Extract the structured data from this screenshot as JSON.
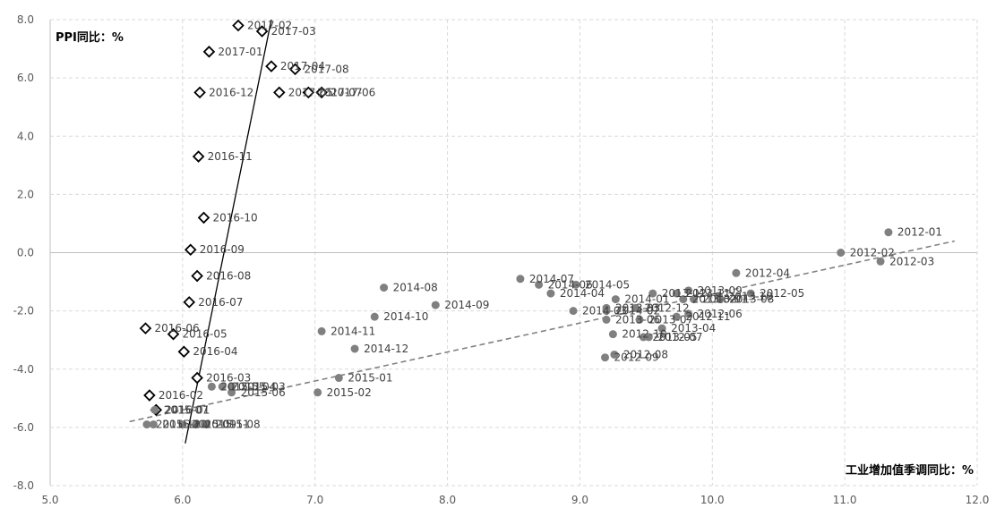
{
  "chart_data": {
    "type": "scatter",
    "ylabel": "PPI同比：%",
    "xlabel": "工业增加值季调同比：%",
    "xlim": [
      5.0,
      12.0
    ],
    "ylim": [
      -8.0,
      8.0
    ],
    "xticks": [
      "5.0",
      "6.0",
      "7.0",
      "8.0",
      "9.0",
      "10.0",
      "11.0",
      "12.0"
    ],
    "yticks": [
      "8.0",
      "6.0",
      "4.0",
      "2.0",
      "0.0",
      "-2.0",
      "-4.0",
      "-6.0",
      "-8.0"
    ],
    "grid": true,
    "series": [
      {
        "marker": "diamond-open",
        "color": "#000000",
        "points": [
          {
            "label": "2016-01",
            "x": 5.8,
            "y": -5.4
          },
          {
            "label": "2016-02",
            "x": 5.75,
            "y": -4.9
          },
          {
            "label": "2016-03",
            "x": 6.11,
            "y": -4.3
          },
          {
            "label": "2016-04",
            "x": 6.01,
            "y": -3.4
          },
          {
            "label": "2016-05",
            "x": 5.93,
            "y": -2.8
          },
          {
            "label": "2016-06",
            "x": 5.72,
            "y": -2.6
          },
          {
            "label": "2016-07",
            "x": 6.05,
            "y": -1.7
          },
          {
            "label": "2016-08",
            "x": 6.11,
            "y": -0.8
          },
          {
            "label": "2016-09",
            "x": 6.06,
            "y": 0.1
          },
          {
            "label": "2016-10",
            "x": 6.16,
            "y": 1.2
          },
          {
            "label": "2016-11",
            "x": 6.12,
            "y": 3.3
          },
          {
            "label": "2016-12",
            "x": 6.13,
            "y": 5.5
          },
          {
            "label": "2017-01",
            "x": 6.2,
            "y": 6.9
          },
          {
            "label": "2017-02",
            "x": 6.42,
            "y": 7.8
          },
          {
            "label": "2017-03",
            "x": 6.6,
            "y": 7.6
          },
          {
            "label": "2017-04",
            "x": 6.67,
            "y": 6.4
          },
          {
            "label": "2017-05",
            "x": 6.73,
            "y": 5.5
          },
          {
            "label": "2017-06",
            "x": 7.05,
            "y": 5.5
          },
          {
            "label": "2017-07",
            "x": 6.95,
            "y": 5.5
          },
          {
            "label": "2017-08",
            "x": 6.85,
            "y": 6.3
          }
        ]
      },
      {
        "marker": "circle-filled",
        "color": "#808080",
        "points": [
          {
            "label": "2012-01",
            "x": 11.33,
            "y": 0.7
          },
          {
            "label": "2012-02",
            "x": 10.97,
            "y": 0.0
          },
          {
            "label": "2012-03",
            "x": 11.27,
            "y": -0.3
          },
          {
            "label": "2012-04",
            "x": 10.18,
            "y": -0.7
          },
          {
            "label": "2012-05",
            "x": 10.29,
            "y": -1.4
          },
          {
            "label": "2012-06",
            "x": 9.82,
            "y": -2.1
          },
          {
            "label": "2012-07",
            "x": 9.52,
            "y": -2.9
          },
          {
            "label": "2012-08",
            "x": 9.26,
            "y": -3.5
          },
          {
            "label": "2012-09",
            "x": 9.19,
            "y": -3.6
          },
          {
            "label": "2012-10",
            "x": 9.25,
            "y": -2.8
          },
          {
            "label": "2012-11",
            "x": 9.73,
            "y": -2.2
          },
          {
            "label": "2012-12",
            "x": 9.42,
            "y": -1.9
          },
          {
            "label": "2013-01",
            "x": 9.86,
            "y": -1.6
          },
          {
            "label": "2013-02",
            "x": 9.78,
            "y": -1.6
          },
          {
            "label": "2013-03",
            "x": 9.2,
            "y": -1.9
          },
          {
            "label": "2013-04",
            "x": 9.62,
            "y": -2.6
          },
          {
            "label": "2013-05",
            "x": 9.48,
            "y": -2.9
          },
          {
            "label": "2013-06",
            "x": 9.2,
            "y": -2.3
          },
          {
            "label": "2013-07",
            "x": 9.45,
            "y": -2.3
          },
          {
            "label": "2013-08",
            "x": 10.06,
            "y": -1.6
          },
          {
            "label": "2013-09",
            "x": 9.82,
            "y": -1.3
          },
          {
            "label": "2013-10",
            "x": 10.05,
            "y": -1.5
          },
          {
            "label": "2013-11",
            "x": 9.73,
            "y": -1.4
          },
          {
            "label": "2013-12",
            "x": 9.55,
            "y": -1.4
          },
          {
            "label": "2014-01",
            "x": 9.27,
            "y": -1.6
          },
          {
            "label": "2014-02",
            "x": 9.2,
            "y": -2.0
          },
          {
            "label": "2014-03",
            "x": 8.95,
            "y": -2.0
          },
          {
            "label": "2014-04",
            "x": 8.78,
            "y": -1.4
          },
          {
            "label": "2014-05",
            "x": 8.97,
            "y": -1.1
          },
          {
            "label": "2014-06",
            "x": 8.69,
            "y": -1.1
          },
          {
            "label": "2014-07",
            "x": 8.55,
            "y": -0.9
          },
          {
            "label": "2014-08",
            "x": 7.52,
            "y": -1.2
          },
          {
            "label": "2014-09",
            "x": 7.91,
            "y": -1.8
          },
          {
            "label": "2014-10",
            "x": 7.45,
            "y": -2.2
          },
          {
            "label": "2014-11",
            "x": 7.05,
            "y": -2.7
          },
          {
            "label": "2014-12",
            "x": 7.3,
            "y": -3.3
          },
          {
            "label": "2015-01",
            "x": 7.18,
            "y": -4.3
          },
          {
            "label": "2015-02",
            "x": 7.02,
            "y": -4.8
          },
          {
            "label": "2015-03",
            "x": 6.37,
            "y": -4.6
          },
          {
            "label": "2015-04",
            "x": 6.3,
            "y": -4.6
          },
          {
            "label": "2015-05",
            "x": 6.22,
            "y": -4.6
          },
          {
            "label": "2015-06",
            "x": 6.37,
            "y": -4.8
          },
          {
            "label": "2015-07",
            "x": 5.79,
            "y": -5.4
          },
          {
            "label": "2015-08",
            "x": 6.18,
            "y": -5.9
          },
          {
            "label": "2015-09",
            "x": 6.0,
            "y": -5.9
          },
          {
            "label": "2015-10",
            "x": 5.78,
            "y": -5.9
          },
          {
            "label": "2015-11",
            "x": 6.1,
            "y": -5.9
          },
          {
            "label": "2015-12",
            "x": 5.73,
            "y": -5.9
          }
        ]
      }
    ],
    "trendlines": [
      {
        "style": "solid",
        "color": "#000000",
        "x1": 6.02,
        "y1": -6.55,
        "x2": 6.67,
        "y2": 8.0
      },
      {
        "style": "dashed",
        "color": "#808080",
        "x1": 5.6,
        "y1": -5.8,
        "x2": 11.83,
        "y2": 0.4
      }
    ]
  }
}
